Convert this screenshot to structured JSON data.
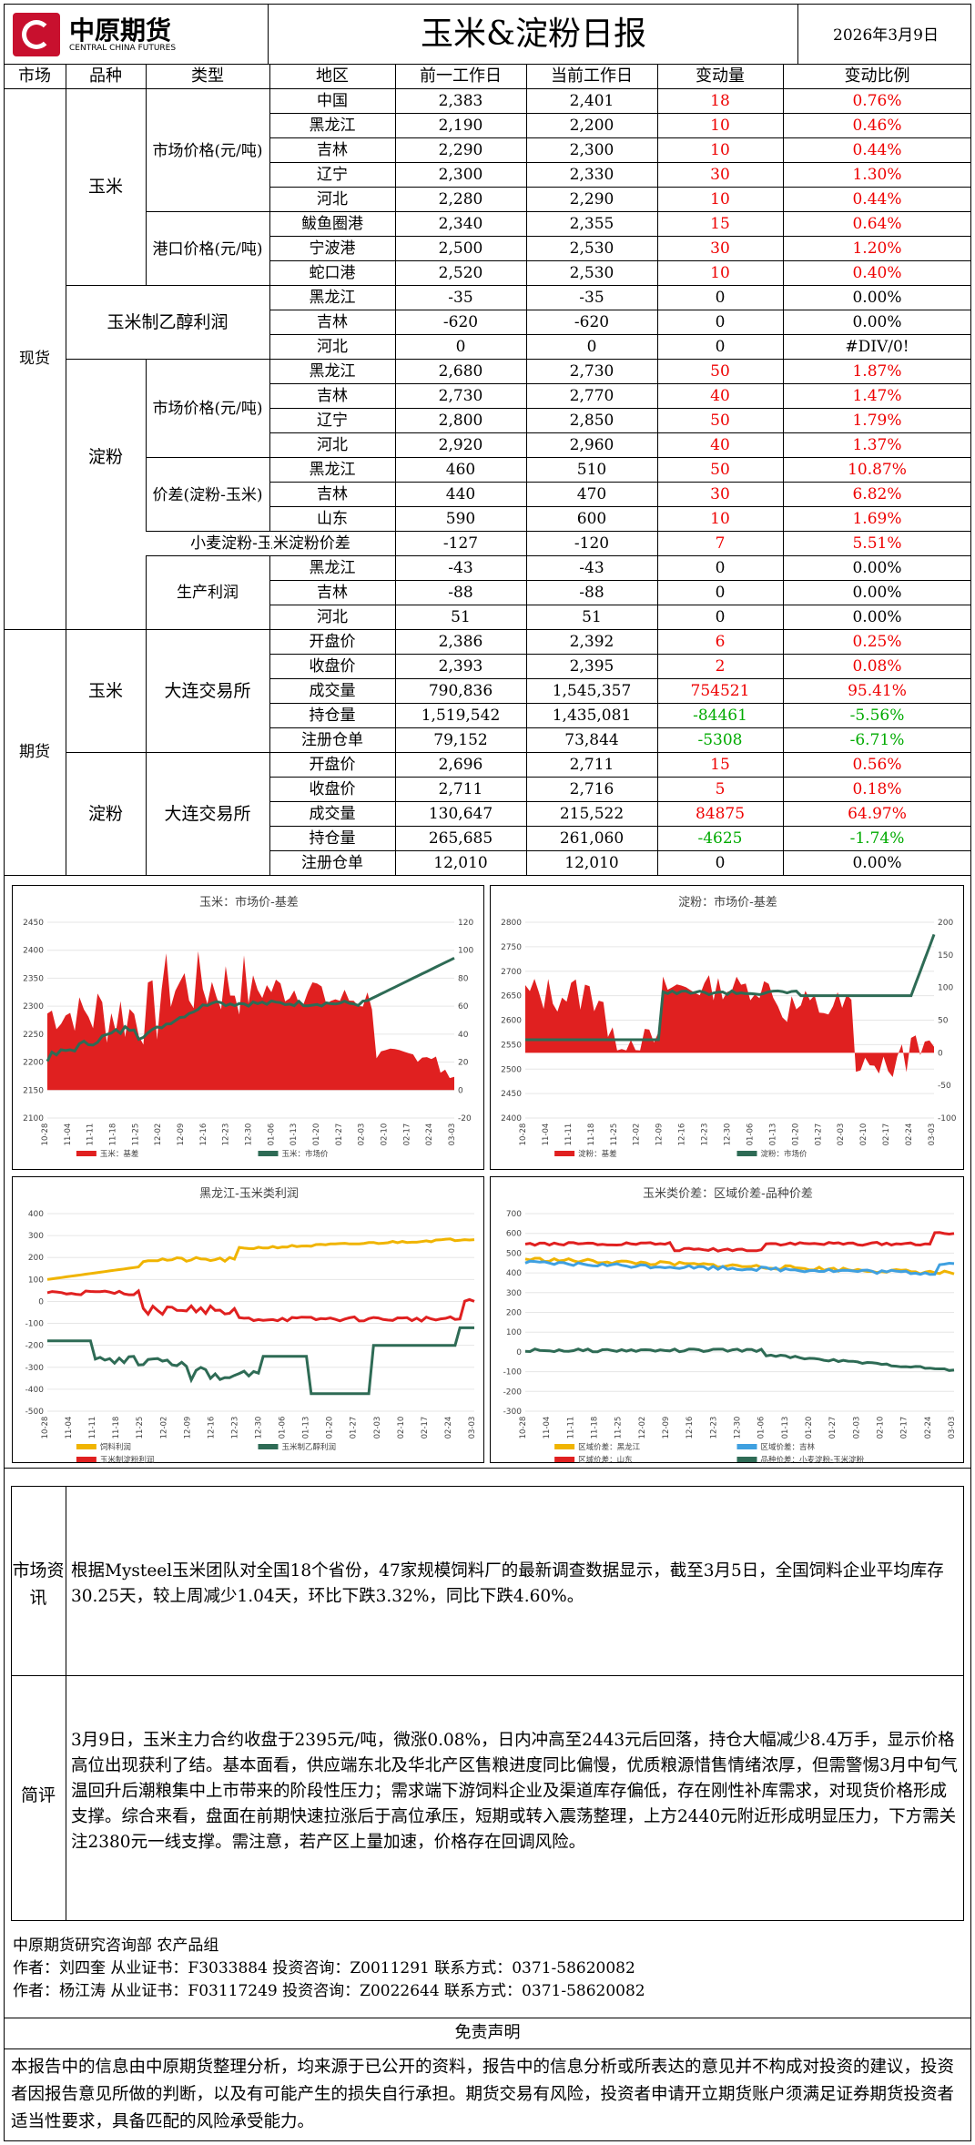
{
  "header": {
    "logo_cn": "中原期货",
    "logo_en": "CENTRAL CHINA FUTURES",
    "title": "玉米&淀粉日报",
    "date": "2026年3月9日"
  },
  "col_headers": [
    "市场",
    "品种",
    "类型",
    "地区",
    "前一工作日",
    "当前工作日",
    "变动量",
    "变动比例"
  ],
  "spot": {
    "market": "现货",
    "corn_label": "玉米",
    "corn_market_type": "市场价格(元/吨)",
    "corn_port_type": "港口价格(元/吨)",
    "ethanol_label": "玉米制乙醇利润",
    "starch_label": "淀粉",
    "starch_market_type": "市场价格(元/吨)",
    "spread_type": "价差(淀粉-玉米)",
    "wheat_label": "小麦淀粉-玉米淀粉价差",
    "profit_type": "生产利润"
  },
  "rows": [
    {
      "region": "中国",
      "prev": "2,383",
      "cur": "2,401",
      "chg": "18",
      "pct": "0.76%",
      "color": "red"
    },
    {
      "region": "黑龙江",
      "prev": "2,190",
      "cur": "2,200",
      "chg": "10",
      "pct": "0.46%",
      "color": "red"
    },
    {
      "region": "吉林",
      "prev": "2,290",
      "cur": "2,300",
      "chg": "10",
      "pct": "0.44%",
      "color": "red"
    },
    {
      "region": "辽宁",
      "prev": "2,300",
      "cur": "2,330",
      "chg": "30",
      "pct": "1.30%",
      "color": "red"
    },
    {
      "region": "河北",
      "prev": "2,280",
      "cur": "2,290",
      "chg": "10",
      "pct": "0.44%",
      "color": "red"
    },
    {
      "region": "鲅鱼圈港",
      "prev": "2,340",
      "cur": "2,355",
      "chg": "15",
      "pct": "0.64%",
      "color": "red"
    },
    {
      "region": "宁波港",
      "prev": "2,500",
      "cur": "2,530",
      "chg": "30",
      "pct": "1.20%",
      "color": "red"
    },
    {
      "region": "蛇口港",
      "prev": "2,520",
      "cur": "2,530",
      "chg": "10",
      "pct": "0.40%",
      "color": "red"
    },
    {
      "region": "黑龙江",
      "prev": "-35",
      "cur": "-35",
      "chg": "0",
      "pct": "0.00%",
      "color": "blk"
    },
    {
      "region": "吉林",
      "prev": "-620",
      "cur": "-620",
      "chg": "0",
      "pct": "0.00%",
      "color": "blk"
    },
    {
      "region": "河北",
      "prev": "0",
      "cur": "0",
      "chg": "0",
      "pct": "#DIV/0!",
      "color": "blk"
    },
    {
      "region": "黑龙江",
      "prev": "2,680",
      "cur": "2,730",
      "chg": "50",
      "pct": "1.87%",
      "color": "red"
    },
    {
      "region": "吉林",
      "prev": "2,730",
      "cur": "2,770",
      "chg": "40",
      "pct": "1.47%",
      "color": "red"
    },
    {
      "region": "辽宁",
      "prev": "2,800",
      "cur": "2,850",
      "chg": "50",
      "pct": "1.79%",
      "color": "red"
    },
    {
      "region": "河北",
      "prev": "2,920",
      "cur": "2,960",
      "chg": "40",
      "pct": "1.37%",
      "color": "red"
    },
    {
      "region": "黑龙江",
      "prev": "460",
      "cur": "510",
      "chg": "50",
      "pct": "10.87%",
      "color": "red"
    },
    {
      "region": "吉林",
      "prev": "440",
      "cur": "470",
      "chg": "30",
      "pct": "6.82%",
      "color": "red"
    },
    {
      "region": "山东",
      "prev": "590",
      "cur": "600",
      "chg": "10",
      "pct": "1.69%",
      "color": "red"
    },
    {
      "region": "",
      "prev": "-127",
      "cur": "-120",
      "chg": "7",
      "pct": "5.51%",
      "color": "red"
    },
    {
      "region": "黑龙江",
      "prev": "-43",
      "cur": "-43",
      "chg": "0",
      "pct": "0.00%",
      "color": "blk"
    },
    {
      "region": "吉林",
      "prev": "-88",
      "cur": "-88",
      "chg": "0",
      "pct": "0.00%",
      "color": "blk"
    },
    {
      "region": "河北",
      "prev": "51",
      "cur": "51",
      "chg": "0",
      "pct": "0.00%",
      "color": "blk"
    }
  ],
  "futures": {
    "market": "期货",
    "corn_label": "玉米",
    "starch_label": "淀粉",
    "exchange": "大连交易所",
    "corn": [
      {
        "item": "开盘价",
        "prev": "2,386",
        "cur": "2,392",
        "chg": "6",
        "pct": "0.25%",
        "color": "red"
      },
      {
        "item": "收盘价",
        "prev": "2,393",
        "cur": "2,395",
        "chg": "2",
        "pct": "0.08%",
        "color": "red"
      },
      {
        "item": "成交量",
        "prev": "790,836",
        "cur": "1,545,357",
        "chg": "754521",
        "pct": "95.41%",
        "color": "red"
      },
      {
        "item": "持仓量",
        "prev": "1,519,542",
        "cur": "1,435,081",
        "chg": "-84461",
        "pct": "-5.56%",
        "color": "grn"
      },
      {
        "item": "注册仓单",
        "prev": "79,152",
        "cur": "73,844",
        "chg": "-5308",
        "pct": "-6.71%",
        "color": "grn"
      }
    ],
    "starch": [
      {
        "item": "开盘价",
        "prev": "2,696",
        "cur": "2,711",
        "chg": "15",
        "pct": "0.56%",
        "color": "red"
      },
      {
        "item": "收盘价",
        "prev": "2,711",
        "cur": "2,716",
        "chg": "5",
        "pct": "0.18%",
        "color": "red"
      },
      {
        "item": "成交量",
        "prev": "130,647",
        "cur": "215,522",
        "chg": "84875",
        "pct": "64.97%",
        "color": "red"
      },
      {
        "item": "持仓量",
        "prev": "265,685",
        "cur": "261,060",
        "chg": "-4625",
        "pct": "-1.74%",
        "color": "grn"
      },
      {
        "item": "注册仓单",
        "prev": "12,010",
        "cur": "12,010",
        "chg": "0",
        "pct": "0.00%",
        "color": "blk"
      }
    ]
  },
  "chart_data": [
    {
      "type": "area",
      "title": "玉米：市场价-基差",
      "y_left": [
        2100,
        2150,
        2200,
        2250,
        2300,
        2350,
        2400,
        2450
      ],
      "y_right": [
        -20,
        0,
        20,
        40,
        60,
        80,
        100,
        120
      ],
      "x_ticks": [
        "10-28",
        "11-04",
        "11-11",
        "11-18",
        "11-25",
        "12-02",
        "12-09",
        "12-16",
        "12-23",
        "12-30",
        "01-06",
        "01-13",
        "01-20",
        "01-27",
        "02-03",
        "02-10",
        "02-17",
        "02-24",
        "03-03"
      ],
      "legend": [
        "玉米：基差",
        "玉米：市场价"
      ],
      "colors": [
        "#e02020",
        "#2e6b55"
      ]
    },
    {
      "type": "area",
      "title": "淀粉：市场价-基差",
      "y_left": [
        2400,
        2450,
        2500,
        2550,
        2600,
        2650,
        2700,
        2750,
        2800
      ],
      "y_right": [
        -100,
        -50,
        0,
        50,
        100,
        150,
        200
      ],
      "x_ticks": [
        "10-28",
        "11-04",
        "11-11",
        "11-18",
        "11-25",
        "12-02",
        "12-09",
        "12-16",
        "12-23",
        "12-30",
        "01-06",
        "01-13",
        "01-20",
        "01-27",
        "02-03",
        "02-10",
        "02-17",
        "02-24",
        "03-03"
      ],
      "legend": [
        "淀粉：基差",
        "淀粉：市场价"
      ],
      "colors": [
        "#e02020",
        "#2e6b55"
      ]
    },
    {
      "type": "line",
      "title": "黑龙江-玉米类利润",
      "y_left": [
        -500,
        -400,
        -300,
        -200,
        -100,
        0,
        100,
        200,
        300,
        400
      ],
      "x_ticks": [
        "10-28",
        "11-04",
        "11-11",
        "11-18",
        "11-25",
        "12-02",
        "12-09",
        "12-16",
        "12-23",
        "12-30",
        "01-06",
        "01-13",
        "01-20",
        "01-27",
        "02-03",
        "02-10",
        "02-17",
        "02-24",
        "03-03"
      ],
      "legend": [
        "饲料利润",
        "玉米制乙醇利润",
        "玉米制淀粉利润"
      ],
      "colors": [
        "#f0b400",
        "#2e6b55",
        "#e02020"
      ]
    },
    {
      "type": "line",
      "title": "玉米类价差：区域价差-品种价差",
      "y_left": [
        -300,
        -200,
        -100,
        0,
        100,
        200,
        300,
        400,
        500,
        600,
        700
      ],
      "x_ticks": [
        "10-28",
        "11-04",
        "11-11",
        "11-18",
        "11-25",
        "12-02",
        "12-09",
        "12-16",
        "12-23",
        "12-30",
        "01-06",
        "01-13",
        "01-20",
        "01-27",
        "02-03",
        "02-10",
        "02-17",
        "02-24",
        "03-03"
      ],
      "legend": [
        "区域价差：黑龙江",
        "区域价差：吉林",
        "区域价差：山东",
        "品种价差：小麦淀粉-玉米淀粉"
      ],
      "colors": [
        "#f0b400",
        "#3fa0e0",
        "#e02020",
        "#2e6b55"
      ]
    }
  ],
  "info": {
    "label": "市场资讯",
    "text": "根据Mysteel玉米团队对全国18个省份，47家规模饲料厂的最新调查数据显示，截至3月5日，全国饲料企业平均库存30.25天，较上周减少1.04天，环比下跌3.32%，同比下跌4.60%。"
  },
  "review": {
    "label": "简评",
    "text": "3月9日，玉米主力合约收盘于2395元/吨，微涨0.08%，日内冲高至2443元后回落，持仓大幅减少8.4万手，显示价格高位出现获利了结。基本面看，供应端东北及华北产区售粮进度同比偏慢，优质粮源惜售情绪浓厚，但需警惕3月中旬气温回升后潮粮集中上市带来的阶段性压力；需求端下游饲料企业及渠道库存偏低，存在刚性补库需求，对现货价格形成支撑。综合来看，盘面在前期快速拉涨后于高位承压，短期或转入震荡整理，上方2440元附近形成明显压力，下方需关注2380元一线支撑。需注意，若产区上量加速，价格存在回调风险。"
  },
  "footer": {
    "dept": "中原期货研究咨询部   农产品组",
    "author1": "作者：刘四奎     从业证书：F3033884     投资咨询：Z0011291     联系方式：0371-58620082",
    "author2": "作者：杨江涛     从业证书：F03117249    投资咨询：Z0022644     联系方式：0371-58620082",
    "disclaimer_title": "免责声明",
    "disclaimer": "本报告中的信息由中原期货整理分析，均来源于已公开的资料，报告中的信息分析或所表达的意见并不构成对投资的建议，投资者因报告意见所做的判断，以及有可能产生的损失自行承担。期货交易有风险，投资者申请开立期货账户须满足证券期货投资者适当性要求，具备匹配的风险承受能力。"
  }
}
